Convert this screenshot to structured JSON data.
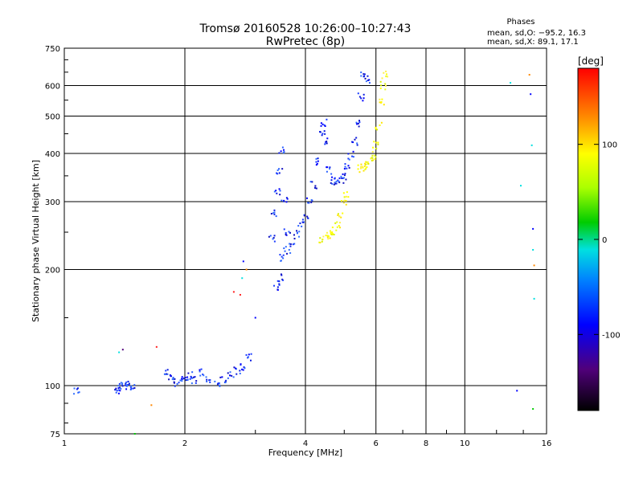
{
  "chart_data": {
    "type": "scatter",
    "title": "Tromsø 20160528 10:26:00–10:27:43",
    "subtitle": "RwPretec (8p)",
    "xlabel": "Frequency [MHz]",
    "ylabel": "Stationary phase Virtual Height [km]",
    "x_scale": "log",
    "y_scale": "log",
    "xlim": [
      1,
      16
    ],
    "ylim": [
      75,
      750
    ],
    "x_ticks": [
      1,
      2,
      4,
      6,
      8,
      10,
      16
    ],
    "y_ticks": [
      75,
      100,
      200,
      300,
      400,
      500,
      600,
      750
    ],
    "grid": true,
    "phases": {
      "title": "Phases",
      "o_line": "mean, sd,O: −95.2, 16.3",
      "x_line": "mean, sd,X:  89.1, 17.1"
    },
    "colorbar": {
      "label": "[deg]",
      "range": [
        -180,
        180
      ],
      "ticks": [
        100,
        0,
        -100
      ]
    },
    "series": [
      {
        "color_hint": "blue (O-mode, phase ≈ −95°)",
        "points": [
          [
            1.07,
            97
          ],
          [
            1.35,
            97
          ],
          [
            1.36,
            98
          ],
          [
            1.4,
            100
          ],
          [
            1.42,
            101
          ],
          [
            1.45,
            100
          ],
          [
            1.48,
            100
          ],
          [
            1.8,
            108
          ],
          [
            1.85,
            104
          ],
          [
            1.9,
            102
          ],
          [
            1.95,
            103
          ],
          [
            2.0,
            104
          ],
          [
            2.05,
            106
          ],
          [
            2.1,
            103
          ],
          [
            2.2,
            108
          ],
          [
            2.3,
            104
          ],
          [
            2.4,
            101
          ],
          [
            2.5,
            103
          ],
          [
            2.6,
            106
          ],
          [
            2.7,
            109
          ],
          [
            2.8,
            112
          ],
          [
            2.9,
            118
          ],
          [
            3.3,
            240
          ],
          [
            3.35,
            280
          ],
          [
            3.4,
            320
          ],
          [
            3.45,
            360
          ],
          [
            3.5,
            410
          ],
          [
            3.55,
            300
          ],
          [
            3.6,
            250
          ],
          [
            3.4,
            180
          ],
          [
            3.45,
            190
          ],
          [
            3.5,
            215
          ],
          [
            3.6,
            225
          ],
          [
            3.7,
            235
          ],
          [
            3.8,
            248
          ],
          [
            3.9,
            260
          ],
          [
            4.0,
            275
          ],
          [
            4.1,
            300
          ],
          [
            4.2,
            330
          ],
          [
            4.3,
            380
          ],
          [
            4.4,
            450
          ],
          [
            4.45,
            480
          ],
          [
            4.5,
            430
          ],
          [
            4.6,
            360
          ],
          [
            4.7,
            340
          ],
          [
            4.8,
            335
          ],
          [
            4.9,
            340
          ],
          [
            5.0,
            350
          ],
          [
            5.1,
            370
          ],
          [
            5.2,
            395
          ],
          [
            5.3,
            430
          ],
          [
            5.4,
            480
          ],
          [
            5.5,
            560
          ],
          [
            5.6,
            640
          ],
          [
            5.7,
            620
          ]
        ]
      },
      {
        "color_hint": "yellow (X-mode, phase ≈ +89°)",
        "points": [
          [
            4.4,
            240
          ],
          [
            4.5,
            242
          ],
          [
            4.6,
            246
          ],
          [
            4.7,
            252
          ],
          [
            4.8,
            262
          ],
          [
            4.9,
            278
          ],
          [
            5.0,
            300
          ],
          [
            5.05,
            315
          ],
          [
            5.5,
            365
          ],
          [
            5.6,
            368
          ],
          [
            5.7,
            372
          ],
          [
            5.8,
            380
          ],
          [
            5.9,
            395
          ],
          [
            6.0,
            420
          ],
          [
            6.1,
            470
          ],
          [
            6.2,
            540
          ],
          [
            6.25,
            600
          ],
          [
            6.3,
            640
          ]
        ]
      },
      {
        "color_hint": "scattered noise (mixed phase)",
        "points": [
          [
            1.37,
            122
          ],
          [
            1.4,
            124
          ],
          [
            1.65,
            89
          ],
          [
            1.7,
            126
          ],
          [
            1.5,
            75
          ],
          [
            2.65,
            175
          ],
          [
            2.75,
            172
          ],
          [
            2.78,
            190
          ],
          [
            2.8,
            210
          ],
          [
            2.85,
            200
          ],
          [
            3.0,
            150
          ],
          [
            13.0,
            610
          ],
          [
            13.5,
            97
          ],
          [
            13.8,
            330
          ],
          [
            14.5,
            640
          ],
          [
            14.6,
            570
          ],
          [
            14.7,
            420
          ],
          [
            14.8,
            255
          ],
          [
            14.8,
            225
          ],
          [
            14.9,
            205
          ],
          [
            14.9,
            168
          ],
          [
            14.8,
            87
          ]
        ]
      }
    ]
  }
}
